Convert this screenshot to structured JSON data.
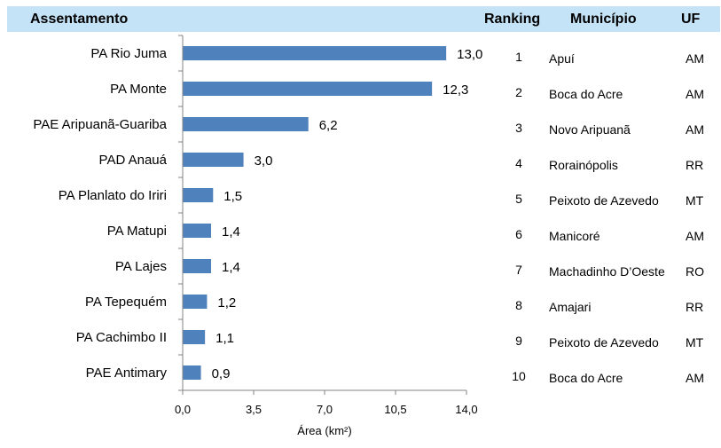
{
  "header": {
    "assentamento": "Assentamento",
    "ranking": "Ranking",
    "municipio": "Município",
    "uf": "UF"
  },
  "chart_data": {
    "type": "bar",
    "orientation": "horizontal",
    "categories": [
      "PA Rio Juma",
      "PA Monte",
      "PAE Aripuanã-Guariba",
      "PAD Anauá",
      "PA Planlato do Iriri",
      "PA Matupi",
      "PA Lajes",
      "PA Tepequém",
      "PA Cachimbo II",
      "PAE Antimary"
    ],
    "values": [
      13.0,
      12.3,
      6.2,
      3.0,
      1.5,
      1.4,
      1.4,
      1.2,
      1.1,
      0.9
    ],
    "value_labels": [
      "13,0",
      "12,3",
      "6,2",
      "3,0",
      "1,5",
      "1,4",
      "1,4",
      "1,2",
      "1,1",
      "0,9"
    ],
    "xlim": [
      0,
      14
    ],
    "xticks": [
      0,
      3.5,
      7,
      10.5,
      14
    ],
    "xtick_labels": [
      "0,0",
      "3,5",
      "7,0",
      "10,5",
      "14,0"
    ],
    "xlabel": "Área (km²)",
    "ylabel": "",
    "title": "",
    "grid": false,
    "bar_color": "#4f81bd"
  },
  "table": {
    "rows": [
      {
        "ranking": "1",
        "municipio": "Apuí",
        "uf": "AM"
      },
      {
        "ranking": "2",
        "municipio": "Boca do Acre",
        "uf": "AM"
      },
      {
        "ranking": "3",
        "municipio": "Novo Aripuanã",
        "uf": "AM"
      },
      {
        "ranking": "4",
        "municipio": "Rorainópolis",
        "uf": "RR"
      },
      {
        "ranking": "5",
        "municipio": "Peixoto de Azevedo",
        "uf": "MT"
      },
      {
        "ranking": "6",
        "municipio": "Manicoré",
        "uf": "AM"
      },
      {
        "ranking": "7",
        "municipio": "Machadinho D’Oeste",
        "uf": "RO"
      },
      {
        "ranking": "8",
        "municipio": "Amajari",
        "uf": "RR"
      },
      {
        "ranking": "9",
        "municipio": "Peixoto de Azevedo",
        "uf": "MT"
      },
      {
        "ranking": "10",
        "municipio": "Boca do Acre",
        "uf": "AM"
      }
    ]
  },
  "colors": {
    "header_band": "#c5e3f7",
    "bar": "#4f81bd",
    "axis": "#868686"
  }
}
